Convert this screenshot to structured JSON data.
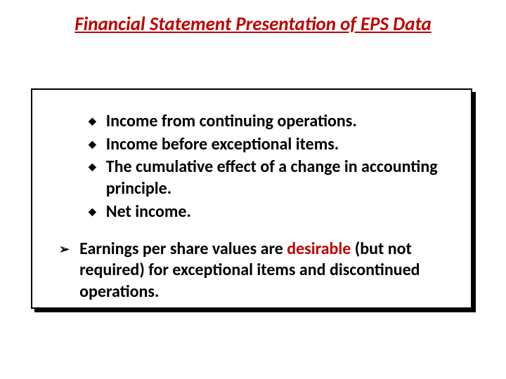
{
  "title": {
    "text": "Financial Statement Presentation of EPS Data",
    "color": "#c00000",
    "fontsize": 27
  },
  "box": {
    "border_color": "#000000",
    "shadow_color": "#000000",
    "background": "#ffffff"
  },
  "bullets": {
    "diamond_glyph": "◆",
    "diamond_color": "#000000",
    "arrow_glyph": "➢",
    "arrow_color": "#000000"
  },
  "diamond_items": [
    "Income from continuing operations.",
    "Income before exceptional items.",
    "The cumulative effect of a change in accounting principle.",
    "Net income."
  ],
  "arrow_item": {
    "prefix": "Earnings per share values are ",
    "highlight": "desirable",
    "highlight_color": "#c00000",
    "suffix": " (but not required) for exceptional items and discontinued operations."
  },
  "text_color": "#000000",
  "item_fontsize": 24
}
